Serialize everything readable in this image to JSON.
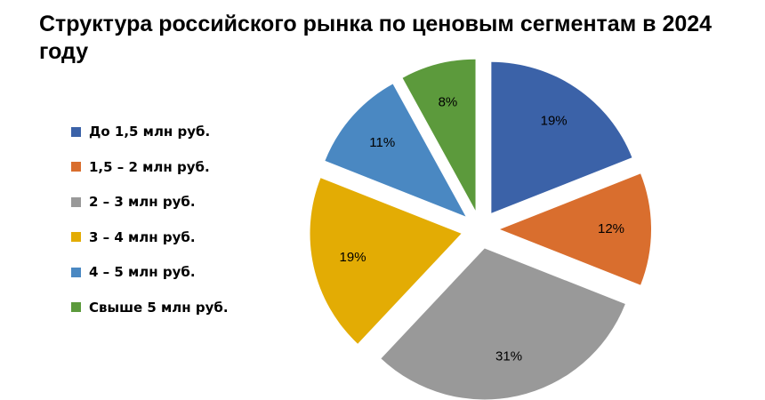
{
  "title": "Структура российского рынка по ценовым сегментам в 2024 году",
  "chart_data": {
    "type": "pie",
    "exploded": true,
    "legend_position": "left",
    "slices": [
      {
        "label": "До 1,5 млн руб.",
        "value": 19,
        "value_label": "19%",
        "color": "#3b62a8"
      },
      {
        "label": "1,5 – 2 млн руб.",
        "value": 12,
        "value_label": "12%",
        "color": "#d96e2e"
      },
      {
        "label": "2 – 3 млн руб.",
        "value": 31,
        "value_label": "31%",
        "color": "#999999"
      },
      {
        "label": "3 – 4 млн руб.",
        "value": 19,
        "value_label": "19%",
        "color": "#e3ac04"
      },
      {
        "label": "4 – 5 млн руб.",
        "value": 11,
        "value_label": "11%",
        "color": "#4a88c2"
      },
      {
        "label": "Свыше 5 млн руб.",
        "value": 8,
        "value_label": "8%",
        "color": "#5c9a3c"
      }
    ]
  }
}
